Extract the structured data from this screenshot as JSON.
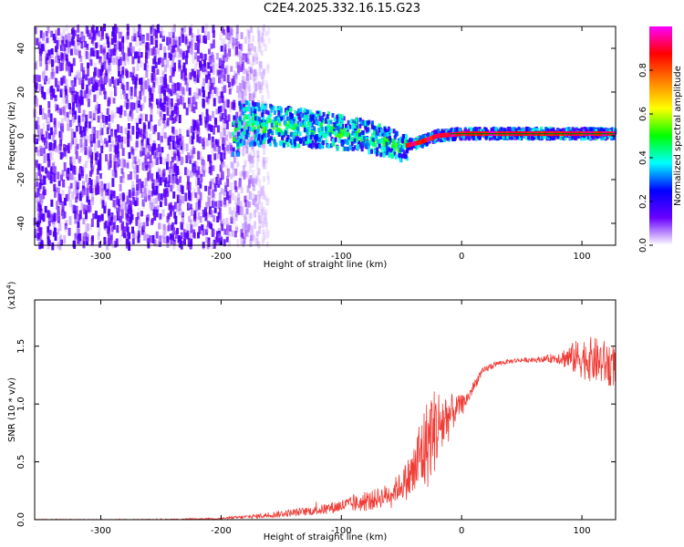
{
  "title": "C2E4.2025.332.16.15.G23",
  "chart_data": [
    {
      "type": "heatmap",
      "name": "spectrogram",
      "xlabel": "Height of straight line (km)",
      "ylabel": "Frequency (Hz)",
      "xlim": [
        -355,
        128
      ],
      "ylim": [
        -50,
        50
      ],
      "xticks": [
        -300,
        -200,
        -100,
        0,
        100
      ],
      "xtick_labels": [
        "-300",
        "-200",
        "-100",
        "0",
        "100"
      ],
      "yticks": [
        -40,
        -20,
        0,
        20,
        40
      ],
      "ytick_labels": [
        "-40",
        "-20",
        "0",
        "20",
        "40"
      ],
      "colorbar": {
        "label": "Normalized spectral amplitude",
        "ticks": [
          0.0,
          0.2,
          0.4,
          0.6,
          0.8
        ],
        "tick_labels": [
          "0.0",
          "0.2",
          "0.4",
          "0.6",
          "0.8"
        ],
        "range": [
          0,
          1
        ],
        "colormap": [
          "#ffffff",
          "#6a00ff",
          "#0000ff",
          "#00ffff",
          "#00ff00",
          "#ffff00",
          "#ff7f00",
          "#ff0000",
          "#ff00ff"
        ]
      },
      "regions": [
        {
          "x_range": [
            -355,
            -185
          ],
          "description": "broadband noise",
          "amplitude": 0.15
        },
        {
          "x_range": [
            -185,
            -45
          ],
          "description": "signal band centered near 0 Hz, drifting down to about -5 Hz",
          "amplitude": 0.4
        },
        {
          "x_range": [
            -45,
            128
          ],
          "description": "strong tone at 0 Hz",
          "amplitude": 0.95
        }
      ],
      "tone_frequency_hz": [
        [
          -185,
          6
        ],
        [
          -120,
          3
        ],
        [
          -80,
          0
        ],
        [
          -50,
          -5
        ],
        [
          -35,
          -3
        ],
        [
          -20,
          0
        ],
        [
          0,
          1
        ],
        [
          128,
          1
        ]
      ]
    },
    {
      "type": "line",
      "name": "snr",
      "xlabel": "Height of straight line (km)",
      "ylabel": "SNR (10 * v/v)",
      "y_multiplier": "(x10^4)",
      "y_multiplier_base": "(x10",
      "y_multiplier_exp": "4",
      "y_multiplier_close": ")",
      "xlim": [
        -355,
        128
      ],
      "ylim": [
        0.0,
        1.9
      ],
      "xticks": [
        -300,
        -200,
        -100,
        0,
        100
      ],
      "xtick_labels": [
        "-300",
        "-200",
        "-100",
        "0",
        "100"
      ],
      "yticks": [
        0.0,
        0.5,
        1.0,
        1.5
      ],
      "ytick_labels": [
        "0.0",
        "0.5",
        "1.0",
        "1.5"
      ],
      "color": "#f03c36",
      "series": [
        {
          "name": "SNR",
          "x": [
            -355,
            -300,
            -250,
            -200,
            -170,
            -150,
            -120,
            -100,
            -80,
            -60,
            -50,
            -40,
            -35,
            -30,
            -25,
            -20,
            -15,
            -10,
            -5,
            0,
            5,
            10,
            15,
            20,
            25,
            30,
            40,
            50,
            60,
            70,
            80,
            90,
            100,
            110,
            120,
            128
          ],
          "y": [
            0.0,
            0.0,
            0.0,
            0.01,
            0.03,
            0.05,
            0.08,
            0.12,
            0.15,
            0.22,
            0.3,
            0.4,
            0.55,
            0.62,
            0.75,
            0.8,
            0.85,
            0.9,
            0.95,
            1.0,
            1.05,
            1.15,
            1.25,
            1.3,
            1.33,
            1.35,
            1.37,
            1.38,
            1.38,
            1.39,
            1.4,
            1.4,
            1.4,
            1.38,
            1.35,
            1.33
          ],
          "noise_amplitude": [
            0.004,
            0.004,
            0.005,
            0.006,
            0.02,
            0.03,
            0.04,
            0.06,
            0.08,
            0.1,
            0.12,
            0.25,
            0.35,
            0.4,
            0.4,
            0.35,
            0.3,
            0.2,
            0.12,
            0.08,
            0.06,
            0.05,
            0.04,
            0.03,
            0.03,
            0.02,
            0.02,
            0.02,
            0.02,
            0.03,
            0.05,
            0.12,
            0.18,
            0.2,
            0.2,
            0.18
          ]
        }
      ]
    }
  ]
}
